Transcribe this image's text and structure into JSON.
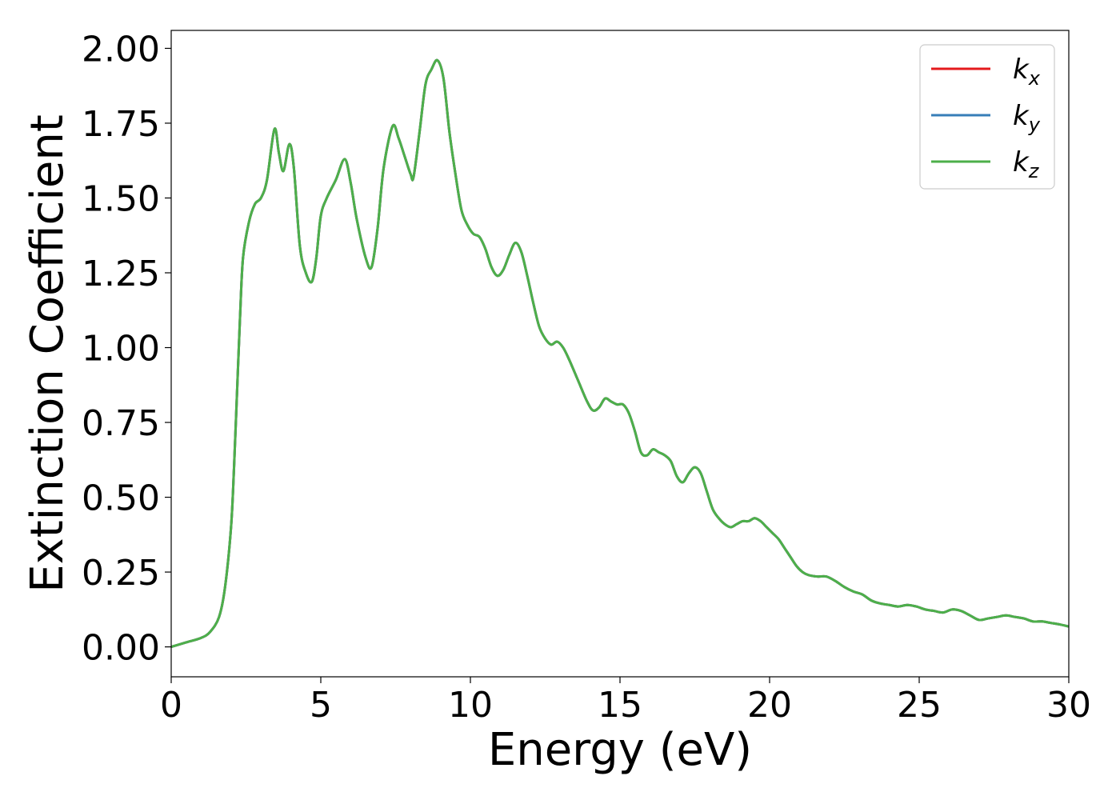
{
  "chart_data": {
    "type": "line",
    "title": "",
    "xlabel": "Energy (eV)",
    "ylabel": "Extinction Coefficient",
    "xlim": [
      0,
      30
    ],
    "ylim": [
      -0.1,
      2.06
    ],
    "xticks": [
      0,
      5,
      10,
      15,
      20,
      25,
      30
    ],
    "xtick_labels": [
      "0",
      "5",
      "10",
      "15",
      "20",
      "25",
      "30"
    ],
    "yticks": [
      0.0,
      0.25,
      0.5,
      0.75,
      1.0,
      1.25,
      1.5,
      1.75,
      2.0
    ],
    "ytick_labels": [
      "0.00",
      "0.25",
      "0.50",
      "0.75",
      "1.00",
      "1.25",
      "1.50",
      "1.75",
      "2.00"
    ],
    "grid": false,
    "legend_position": "top-right",
    "x": [
      0,
      0.5,
      1.0,
      1.3,
      1.6,
      1.8,
      2.0,
      2.1,
      2.2,
      2.3,
      2.4,
      2.6,
      2.8,
      3.0,
      3.2,
      3.45,
      3.6,
      3.75,
      3.95,
      4.1,
      4.3,
      4.5,
      4.7,
      4.85,
      5.0,
      5.2,
      5.5,
      5.8,
      6.0,
      6.2,
      6.5,
      6.7,
      6.9,
      7.1,
      7.4,
      7.6,
      7.8,
      8.0,
      8.1,
      8.3,
      8.5,
      8.7,
      8.9,
      9.1,
      9.3,
      9.5,
      9.7,
      9.9,
      10.1,
      10.3,
      10.5,
      10.7,
      10.9,
      11.1,
      11.3,
      11.5,
      11.7,
      11.9,
      12.1,
      12.3,
      12.5,
      12.7,
      12.9,
      13.1,
      13.3,
      13.6,
      13.9,
      14.1,
      14.3,
      14.5,
      14.7,
      14.9,
      15.1,
      15.3,
      15.5,
      15.7,
      15.9,
      16.1,
      16.3,
      16.5,
      16.7,
      16.9,
      17.1,
      17.3,
      17.5,
      17.7,
      17.9,
      18.1,
      18.3,
      18.5,
      18.7,
      18.9,
      19.1,
      19.3,
      19.5,
      19.7,
      19.9,
      20.1,
      20.3,
      20.5,
      20.7,
      20.9,
      21.1,
      21.3,
      21.6,
      21.9,
      22.2,
      22.5,
      22.8,
      23.1,
      23.4,
      23.7,
      24.0,
      24.3,
      24.6,
      24.9,
      25.2,
      25.5,
      25.8,
      26.1,
      26.4,
      26.7,
      27.0,
      27.3,
      27.6,
      27.9,
      28.2,
      28.5,
      28.8,
      29.1,
      29.4,
      29.7,
      30.0
    ],
    "series": [
      {
        "name": "k_x",
        "label_main": "k",
        "label_sub": "x",
        "color": "#e41a1c",
        "values": [
          0.0,
          0.015,
          0.03,
          0.05,
          0.1,
          0.2,
          0.4,
          0.6,
          0.85,
          1.1,
          1.3,
          1.42,
          1.48,
          1.5,
          1.56,
          1.73,
          1.65,
          1.59,
          1.68,
          1.6,
          1.34,
          1.25,
          1.22,
          1.3,
          1.44,
          1.5,
          1.56,
          1.63,
          1.55,
          1.43,
          1.3,
          1.27,
          1.4,
          1.6,
          1.74,
          1.7,
          1.64,
          1.58,
          1.57,
          1.72,
          1.88,
          1.93,
          1.96,
          1.9,
          1.72,
          1.58,
          1.46,
          1.41,
          1.38,
          1.37,
          1.33,
          1.27,
          1.24,
          1.26,
          1.31,
          1.35,
          1.32,
          1.24,
          1.15,
          1.07,
          1.03,
          1.01,
          1.02,
          1.0,
          0.96,
          0.89,
          0.82,
          0.79,
          0.8,
          0.83,
          0.82,
          0.81,
          0.81,
          0.78,
          0.72,
          0.65,
          0.64,
          0.66,
          0.65,
          0.64,
          0.62,
          0.57,
          0.55,
          0.58,
          0.6,
          0.58,
          0.52,
          0.46,
          0.43,
          0.41,
          0.4,
          0.41,
          0.42,
          0.42,
          0.43,
          0.42,
          0.4,
          0.38,
          0.36,
          0.33,
          0.3,
          0.27,
          0.25,
          0.24,
          0.235,
          0.235,
          0.22,
          0.2,
          0.185,
          0.175,
          0.155,
          0.145,
          0.14,
          0.135,
          0.14,
          0.135,
          0.125,
          0.12,
          0.115,
          0.125,
          0.12,
          0.105,
          0.09,
          0.095,
          0.1,
          0.105,
          0.1,
          0.095,
          0.085,
          0.085,
          0.08,
          0.075,
          0.068
        ]
      },
      {
        "name": "k_y",
        "label_main": "k",
        "label_sub": "y",
        "color": "#377eb8",
        "values": [
          0.0,
          0.015,
          0.03,
          0.05,
          0.1,
          0.2,
          0.4,
          0.6,
          0.85,
          1.1,
          1.3,
          1.42,
          1.48,
          1.5,
          1.56,
          1.73,
          1.65,
          1.59,
          1.68,
          1.6,
          1.34,
          1.25,
          1.22,
          1.3,
          1.44,
          1.5,
          1.56,
          1.63,
          1.55,
          1.43,
          1.3,
          1.27,
          1.4,
          1.6,
          1.74,
          1.7,
          1.64,
          1.58,
          1.57,
          1.72,
          1.88,
          1.93,
          1.96,
          1.9,
          1.72,
          1.58,
          1.46,
          1.41,
          1.38,
          1.37,
          1.33,
          1.27,
          1.24,
          1.26,
          1.31,
          1.35,
          1.32,
          1.24,
          1.15,
          1.07,
          1.03,
          1.01,
          1.02,
          1.0,
          0.96,
          0.89,
          0.82,
          0.79,
          0.8,
          0.83,
          0.82,
          0.81,
          0.81,
          0.78,
          0.72,
          0.65,
          0.64,
          0.66,
          0.65,
          0.64,
          0.62,
          0.57,
          0.55,
          0.58,
          0.6,
          0.58,
          0.52,
          0.46,
          0.43,
          0.41,
          0.4,
          0.41,
          0.42,
          0.42,
          0.43,
          0.42,
          0.4,
          0.38,
          0.36,
          0.33,
          0.3,
          0.27,
          0.25,
          0.24,
          0.235,
          0.235,
          0.22,
          0.2,
          0.185,
          0.175,
          0.155,
          0.145,
          0.14,
          0.135,
          0.14,
          0.135,
          0.125,
          0.12,
          0.115,
          0.125,
          0.12,
          0.105,
          0.09,
          0.095,
          0.1,
          0.105,
          0.1,
          0.095,
          0.085,
          0.085,
          0.08,
          0.075,
          0.068
        ]
      },
      {
        "name": "k_z",
        "label_main": "k",
        "label_sub": "z",
        "color": "#4daf4a",
        "values": [
          0.0,
          0.015,
          0.03,
          0.05,
          0.1,
          0.2,
          0.4,
          0.6,
          0.85,
          1.1,
          1.3,
          1.42,
          1.48,
          1.5,
          1.56,
          1.73,
          1.65,
          1.59,
          1.68,
          1.6,
          1.34,
          1.25,
          1.22,
          1.3,
          1.44,
          1.5,
          1.56,
          1.63,
          1.55,
          1.43,
          1.3,
          1.27,
          1.4,
          1.6,
          1.74,
          1.7,
          1.64,
          1.58,
          1.57,
          1.72,
          1.88,
          1.93,
          1.96,
          1.9,
          1.72,
          1.58,
          1.46,
          1.41,
          1.38,
          1.37,
          1.33,
          1.27,
          1.24,
          1.26,
          1.31,
          1.35,
          1.32,
          1.24,
          1.15,
          1.07,
          1.03,
          1.01,
          1.02,
          1.0,
          0.96,
          0.89,
          0.82,
          0.79,
          0.8,
          0.83,
          0.82,
          0.81,
          0.81,
          0.78,
          0.72,
          0.65,
          0.64,
          0.66,
          0.65,
          0.64,
          0.62,
          0.57,
          0.55,
          0.58,
          0.6,
          0.58,
          0.52,
          0.46,
          0.43,
          0.41,
          0.4,
          0.41,
          0.42,
          0.42,
          0.43,
          0.42,
          0.4,
          0.38,
          0.36,
          0.33,
          0.3,
          0.27,
          0.25,
          0.24,
          0.235,
          0.235,
          0.22,
          0.2,
          0.185,
          0.175,
          0.155,
          0.145,
          0.14,
          0.135,
          0.14,
          0.135,
          0.125,
          0.12,
          0.115,
          0.125,
          0.12,
          0.105,
          0.09,
          0.095,
          0.1,
          0.105,
          0.1,
          0.095,
          0.085,
          0.085,
          0.08,
          0.075,
          0.068
        ]
      }
    ]
  }
}
